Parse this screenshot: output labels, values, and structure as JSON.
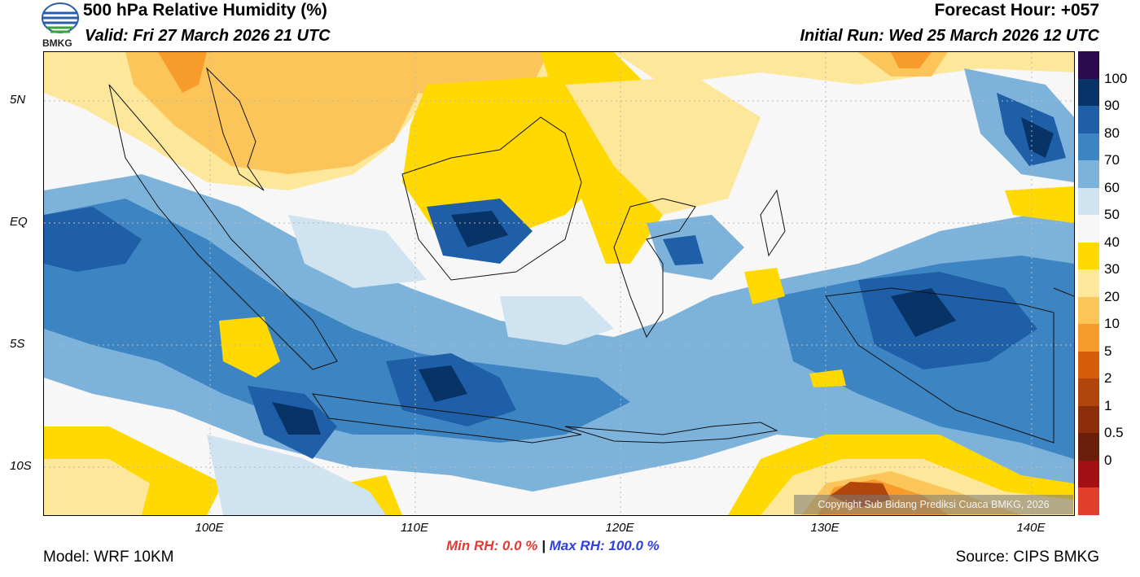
{
  "header": {
    "title": "500 hPa Relative Humidity (%)",
    "valid": "Valid: Fri 27 March 2026 21 UTC",
    "forecast_hour": "Forecast Hour: +057",
    "initial_run": "Initial Run: Wed 25 March 2026 12 UTC",
    "logo_text": "BMKG"
  },
  "axes": {
    "lat_labels": [
      "5N",
      "EQ",
      "5S",
      "10S"
    ],
    "lon_labels": [
      "100E",
      "110E",
      "120E",
      "130E",
      "140E"
    ]
  },
  "colorbar": {
    "labels": [
      "100",
      "90",
      "80",
      "70",
      "60",
      "50",
      "40",
      "30",
      "20",
      "10",
      "5",
      "2",
      "1",
      "0.5",
      "0"
    ],
    "colors": [
      "#2d0a4e",
      "#083367",
      "#1f5fa8",
      "#3d85c2",
      "#7db3da",
      "#cfe3f0",
      "#f7f7f7",
      "#ffd900",
      "#fde79a",
      "#fcc55a",
      "#f79b2a",
      "#d65e0a",
      "#b1450c",
      "#8c2d0b",
      "#6b1e0a",
      "#a31013",
      "#e0402b"
    ]
  },
  "footer": {
    "min_rh": "Min RH:   0.0 %",
    "separator": "|",
    "max_rh": "Max RH: 100.0 %",
    "model": "Model: WRF 10KM",
    "source": "Source: CIPS BMKG",
    "copyright": "Copyright Sub Bidang Prediksi Cuaca BMKG, 2026"
  }
}
